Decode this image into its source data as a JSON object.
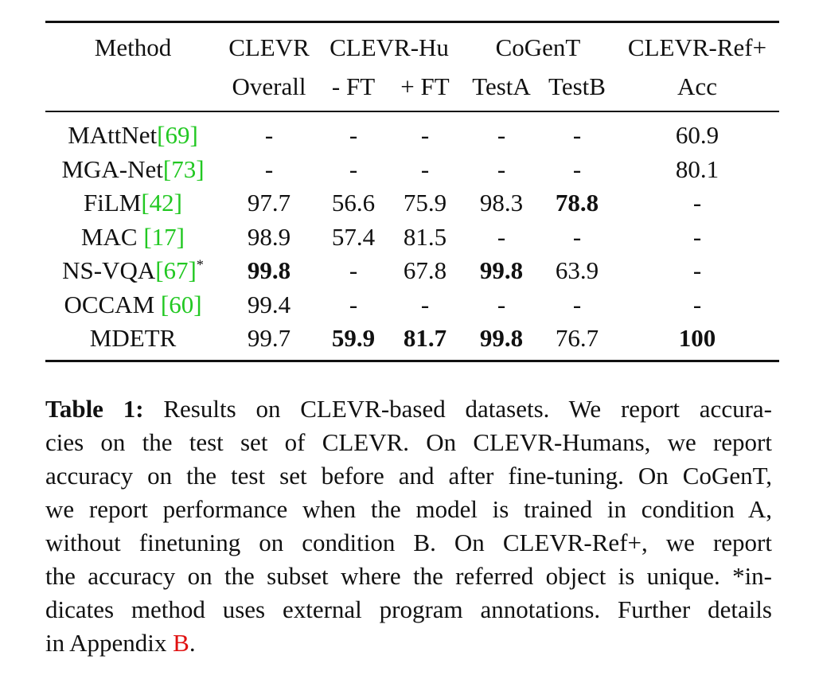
{
  "table": {
    "header_row1": {
      "method": "Method",
      "clevr": "CLEVR",
      "clevr_hu": "CLEVR-Hu",
      "cogent": "CoGenT",
      "clevr_ref": "CLEVR-Ref+"
    },
    "header_row2": {
      "overall": "Overall",
      "minus_ft": "- FT",
      "plus_ft": "+ FT",
      "testa": "TestA",
      "testb": "TestB",
      "acc": "Acc"
    },
    "rows": [
      {
        "method": "MAttNet",
        "cite": "[69]",
        "sup": "",
        "cells": [
          "-",
          "-",
          "-",
          "-",
          "-",
          "60.9"
        ],
        "bold": [
          false,
          false,
          false,
          false,
          false,
          false
        ]
      },
      {
        "method": "MGA-Net",
        "cite": "[73]",
        "sup": "",
        "cells": [
          "-",
          "-",
          "-",
          "-",
          "-",
          "80.1"
        ],
        "bold": [
          false,
          false,
          false,
          false,
          false,
          false
        ]
      },
      {
        "method": "FiLM",
        "cite": "[42]",
        "sup": "",
        "cells": [
          "97.7",
          "56.6",
          "75.9",
          "98.3",
          "78.8",
          "-"
        ],
        "bold": [
          false,
          false,
          false,
          false,
          true,
          false
        ]
      },
      {
        "method": "MAC ",
        "cite": "[17]",
        "sup": "",
        "cells": [
          "98.9",
          "57.4",
          "81.5",
          "-",
          "-",
          "-"
        ],
        "bold": [
          false,
          false,
          false,
          false,
          false,
          false
        ]
      },
      {
        "method": "NS-VQA",
        "cite": "[67]",
        "sup": "*",
        "cells": [
          "99.8",
          "-",
          "67.8",
          "99.8",
          "63.9",
          "-"
        ],
        "bold": [
          true,
          false,
          false,
          true,
          false,
          false
        ]
      },
      {
        "method": "OCCAM ",
        "cite": "[60]",
        "sup": "",
        "cells": [
          "99.4",
          "-",
          "-",
          "-",
          "-",
          "-"
        ],
        "bold": [
          false,
          false,
          false,
          false,
          false,
          false
        ]
      },
      {
        "method": "MDETR",
        "cite": "",
        "sup": "",
        "cells": [
          "99.7",
          "59.9",
          "81.7",
          "99.8",
          "76.7",
          "100"
        ],
        "bold": [
          false,
          true,
          true,
          true,
          false,
          true
        ]
      }
    ]
  },
  "caption": {
    "label": "Table 1:",
    "lines": [
      " Results on CLEVR-based datasets.  We report accura-",
      "cies on the test set of CLEVR. On CLEVR-Humans, we report",
      "accuracy on the test set before and after fine-tuning. On CoGenT,",
      "we report performance when the model is trained in condition A,",
      "without finetuning on condition B. On CLEVR-Ref+, we report",
      "the accuracy on the subset where the referred object is unique. *in-",
      "dicates method uses external program annotations. Further details",
      "in Appendix "
    ],
    "appendix_ref": "B",
    "end": "."
  }
}
